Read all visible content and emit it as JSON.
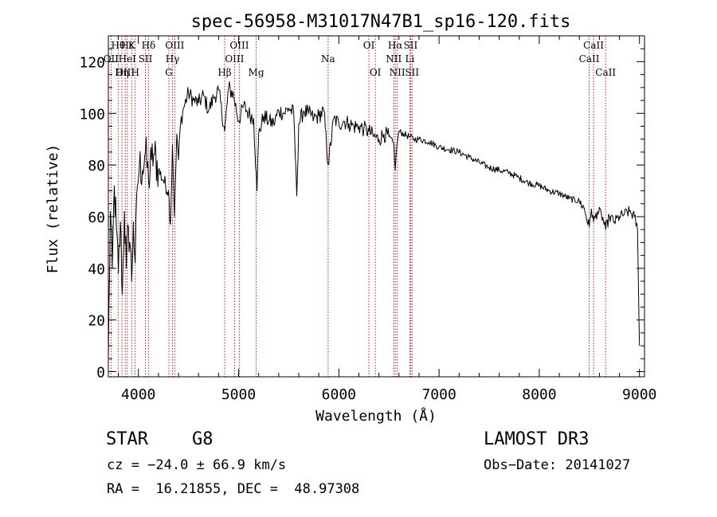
{
  "chart_data": {
    "type": "line",
    "title": "spec-56958-M31017N47B1_sp16-120.fits",
    "xlabel": "Wavelength (Å)",
    "ylabel": "Flux (relative)",
    "xlim": [
      3700,
      9050
    ],
    "ylim": [
      -2,
      130
    ],
    "xticks": [
      4000,
      5000,
      6000,
      7000,
      8000,
      9000
    ],
    "xtick_labels": [
      "4000",
      "5000",
      "6000",
      "7000",
      "8000",
      "9000"
    ],
    "yticks": [
      0,
      20,
      40,
      60,
      80,
      100,
      120
    ],
    "ytick_labels": [
      "0",
      "20",
      "40",
      "60",
      "80",
      "100",
      "120"
    ],
    "grid": false,
    "line_color": "#000000",
    "marker_color": "#b22222",
    "series": [
      {
        "name": "flux",
        "x": [
          3700,
          3720,
          3740,
          3760,
          3780,
          3800,
          3820,
          3840,
          3860,
          3880,
          3900,
          3920,
          3933,
          3950,
          3968,
          3990,
          4010,
          4040,
          4070,
          4101,
          4130,
          4160,
          4200,
          4250,
          4300,
          4320,
          4340,
          4360,
          4383,
          4400,
          4420,
          4450,
          4500,
          4550,
          4600,
          4650,
          4700,
          4750,
          4800,
          4861,
          4900,
          4950,
          5000,
          5050,
          5100,
          5150,
          5183,
          5200,
          5250,
          5300,
          5350,
          5400,
          5450,
          5500,
          5550,
          5580,
          5600,
          5650,
          5700,
          5750,
          5800,
          5850,
          5893,
          5950,
          6000,
          6050,
          6100,
          6150,
          6200,
          6250,
          6300,
          6350,
          6400,
          6450,
          6500,
          6550,
          6563,
          6580,
          6600,
          6650,
          6700,
          6750,
          6800,
          6900,
          7000,
          7100,
          7200,
          7300,
          7400,
          7500,
          7600,
          7700,
          7800,
          7900,
          8000,
          8100,
          8200,
          8300,
          8400,
          8450,
          8498,
          8520,
          8542,
          8580,
          8620,
          8662,
          8700,
          8750,
          8800,
          8850,
          8900,
          8950,
          8980,
          9000
        ],
        "values": [
          5,
          62,
          40,
          72,
          55,
          38,
          58,
          30,
          62,
          40,
          56,
          48,
          35,
          58,
          42,
          72,
          80,
          78,
          85,
          74,
          82,
          84,
          78,
          74,
          70,
          57,
          88,
          60,
          92,
          82,
          96,
          102,
          108,
          105,
          104,
          107,
          101,
          106,
          109,
          93,
          110,
          107,
          97,
          103,
          100,
          98,
          70,
          92,
          99,
          97,
          96,
          101,
          100,
          102,
          100,
          68,
          96,
          101,
          100,
          98,
          99,
          101,
          80,
          98,
          96,
          97,
          96,
          95,
          95,
          94,
          93,
          91,
          90,
          92,
          91,
          88,
          78,
          88,
          93,
          92,
          91,
          90,
          90,
          89,
          87,
          86,
          85,
          83,
          81,
          79,
          78,
          77,
          75,
          73,
          72,
          70,
          69,
          67,
          66,
          63,
          56,
          63,
          58,
          62,
          61,
          55,
          60,
          58,
          60,
          61,
          62,
          60,
          55,
          10
        ]
      }
    ],
    "lines": [
      {
        "name": "Hθ",
        "wave": 3798,
        "position": "top"
      },
      {
        "name": "OII",
        "wave": 3727,
        "position": "upper"
      },
      {
        "name": "Hε",
        "wave": 3889,
        "position": "top"
      },
      {
        "name": "HeI",
        "wave": 3889,
        "position": "upper"
      },
      {
        "name": "OIII",
        "wave": 3869,
        "position": "lower"
      },
      {
        "name": "K",
        "wave": 3933,
        "position": "top"
      },
      {
        "name": "SII",
        "wave": 4070,
        "position": "upper"
      },
      {
        "name": "Hη",
        "wave": 3835,
        "position": "lower"
      },
      {
        "name": "H",
        "wave": 3968,
        "position": "lower"
      },
      {
        "name": "Hδ",
        "wave": 4101,
        "position": "top"
      },
      {
        "name": "OIII",
        "wave": 4363,
        "position": "top"
      },
      {
        "name": "Hγ",
        "wave": 4340,
        "position": "upper"
      },
      {
        "name": "G",
        "wave": 4304,
        "position": "lower"
      },
      {
        "name": "Hβ",
        "wave": 4861,
        "position": "lower"
      },
      {
        "name": "OIII",
        "wave": 5007,
        "position": "top"
      },
      {
        "name": "OIII",
        "wave": 4959,
        "position": "upper"
      },
      {
        "name": "Mg",
        "wave": 5175,
        "position": "lower"
      },
      {
        "name": "Na",
        "wave": 5893,
        "position": "upper"
      },
      {
        "name": "OI",
        "wave": 6300,
        "position": "top"
      },
      {
        "name": "OI",
        "wave": 6364,
        "position": "lower"
      },
      {
        "name": "Hα",
        "wave": 6563,
        "position": "top"
      },
      {
        "name": "NII",
        "wave": 6548,
        "position": "upper"
      },
      {
        "name": "NII",
        "wave": 6583,
        "position": "lower"
      },
      {
        "name": "SII",
        "wave": 6716,
        "position": "top"
      },
      {
        "name": "Li",
        "wave": 6708,
        "position": "upper"
      },
      {
        "name": "SII",
        "wave": 6731,
        "position": "lower"
      },
      {
        "name": "CaII",
        "wave": 8542,
        "position": "top"
      },
      {
        "name": "CaII",
        "wave": 8498,
        "position": "upper"
      },
      {
        "name": "CaII",
        "wave": 8662,
        "position": "lower"
      }
    ]
  },
  "info": {
    "object_class": "STAR",
    "subclass": "G8",
    "survey": "LAMOST DR3",
    "redshift": "cz = −24.0 ± 66.9 km/s",
    "obs_date": "Obs−Date: 20141027",
    "coords": "RA =  16.21855, DEC =  48.97308"
  }
}
